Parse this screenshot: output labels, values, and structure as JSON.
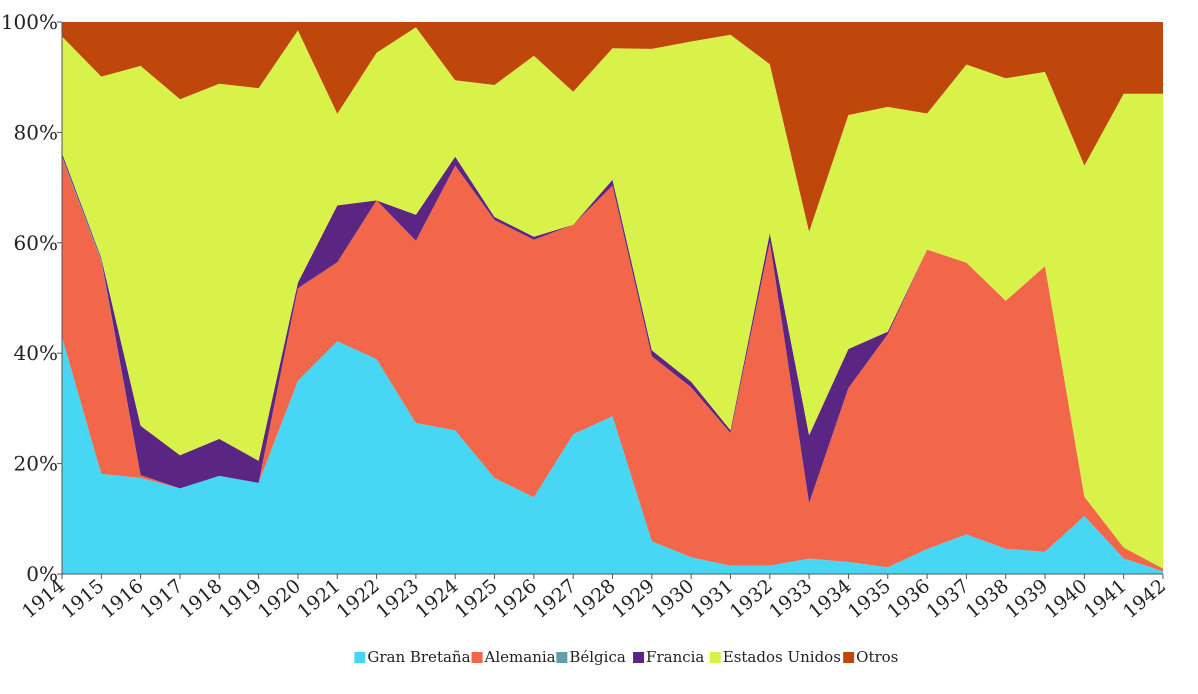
{
  "chart_data": {
    "type": "area",
    "stacked": "percent",
    "xlabel": "",
    "ylabel": "",
    "ylim": [
      0,
      100
    ],
    "y_ticks": [
      "0%",
      "20%",
      "40%",
      "60%",
      "80%",
      "100%"
    ],
    "grid": false,
    "legend_position": "bottom",
    "categories": [
      "1914",
      "1915",
      "1916",
      "1917",
      "1918",
      "1919",
      "1920",
      "1921",
      "1922",
      "1923",
      "1924",
      "1925",
      "1926",
      "1927",
      "1928",
      "1929",
      "1930",
      "1931",
      "1932",
      "1933",
      "1934",
      "1935",
      "1936",
      "1937",
      "1938",
      "1939",
      "1940",
      "1941",
      "1942"
    ],
    "series": [
      {
        "name": "Gran Bretaña",
        "color": "#47d6f3",
        "values": [
          41,
          16.5,
          17.5,
          15.5,
          16.7,
          16.5,
          34.5,
          36.8,
          38.5,
          14.5,
          16,
          16,
          12.5,
          21,
          27,
          5.5,
          3,
          1.5,
          1.5,
          2.5,
          2,
          1.2,
          4.5,
          7,
          4.5,
          4,
          10.5,
          2.8,
          0.5
        ]
      },
      {
        "name": "Alemania",
        "color": "#f2674a",
        "values": [
          31,
          35,
          0.5,
          0,
          0,
          0,
          16.5,
          12.5,
          28.5,
          17.5,
          29.5,
          43,
          42,
          31.5,
          39.5,
          31,
          30.5,
          24,
          57.5,
          9,
          29,
          42,
          54,
          48,
          44,
          51.5,
          3.5,
          2,
          0.5
        ]
      },
      {
        "name": "Bélgica",
        "color": "#5f9eac",
        "values": [
          0.3,
          0.3,
          0,
          0,
          0,
          0,
          0,
          0,
          0,
          0,
          0,
          0,
          0,
          0,
          0,
          0,
          0,
          0,
          0,
          0,
          0,
          0,
          0,
          0,
          0,
          0,
          0,
          0,
          0
        ]
      },
      {
        "name": "Francia",
        "color": "#5b2584",
        "values": [
          0.5,
          0.3,
          9,
          6,
          6.3,
          4,
          1,
          9,
          0,
          2.5,
          1,
          0.5,
          0.5,
          0,
          1,
          1,
          1,
          0.5,
          1.5,
          11,
          6.5,
          0.5,
          0,
          0,
          0,
          0,
          0,
          0,
          0
        ]
      },
      {
        "name": "Estados Unidos",
        "color": "#d9f24a",
        "values": [
          20.2,
          29.9,
          65.5,
          64.5,
          60.5,
          67.5,
          45,
          14.5,
          26.5,
          18,
          8.5,
          22,
          29.5,
          20,
          22.5,
          50.5,
          61,
          71.5,
          30,
          33,
          39,
          40.5,
          24.5,
          35,
          39.5,
          35,
          60,
          82.2,
          86
        ]
      },
      {
        "name": "Otros",
        "color": "#c0470b",
        "values": [
          2.5,
          9,
          8,
          14,
          10.5,
          12,
          1.5,
          14.5,
          5.5,
          0.5,
          6.5,
          10.5,
          5.5,
          10.5,
          4.5,
          4.5,
          3.5,
          2.3,
          7.5,
          34,
          15.5,
          15.3,
          16.5,
          7.5,
          10,
          9,
          26,
          13,
          13
        ]
      }
    ]
  }
}
